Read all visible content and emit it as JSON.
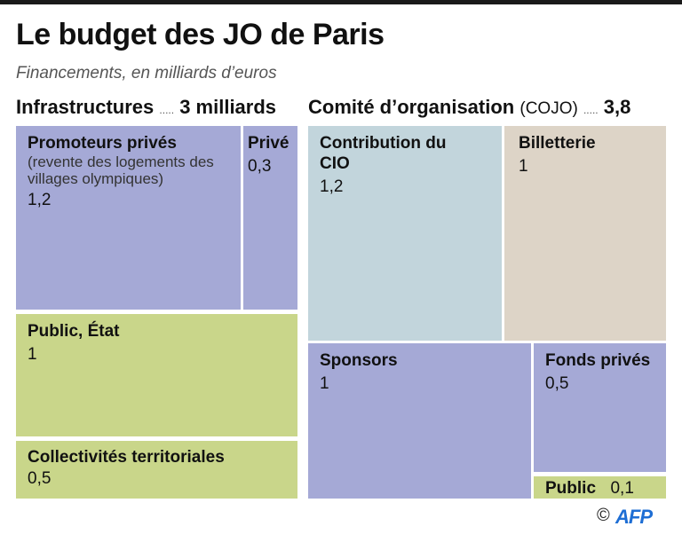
{
  "title": "Le budget des JO de Paris",
  "subtitle": "Financements, en milliards d’euros",
  "credit": {
    "symbol": "©",
    "logo_text": "AFP"
  },
  "colors": {
    "private": "#a5a9d6",
    "public": "#c9d68a",
    "cio": "#c2d5dc",
    "ticketing": "#ddd4c7"
  },
  "chart_data": {
    "type": "treemap",
    "title": "Le budget des JO de Paris",
    "unit": "milliards d’euros",
    "groups": [
      {
        "name": "Infrastructures",
        "dots": ".....",
        "total_label": "3 milliards",
        "total": 3,
        "items": [
          {
            "label": "Promoteurs privés",
            "note": "(revente des logements des villages olympiques)",
            "value_label": "1,2",
            "value": 1.2,
            "category": "private"
          },
          {
            "label": "Privé",
            "value_label": "0,3",
            "value": 0.3,
            "category": "private"
          },
          {
            "label": "Public, État",
            "value_label": "1",
            "value": 1,
            "category": "public"
          },
          {
            "label": "Collectivités territoriales",
            "value_label": "0,5",
            "value": 0.5,
            "category": "public"
          }
        ]
      },
      {
        "name": "Comité d’organisation",
        "qualifier": "(COJO)",
        "dots": ".....",
        "total_label": "3,8",
        "total": 3.8,
        "items": [
          {
            "label": "Contribution du CIO",
            "value_label": "1,2",
            "value": 1.2,
            "category": "cio"
          },
          {
            "label": "Billetterie",
            "value_label": "1",
            "value": 1,
            "category": "ticketing"
          },
          {
            "label": "Sponsors",
            "value_label": "1",
            "value": 1,
            "category": "private"
          },
          {
            "label": "Fonds privés",
            "value_label": "0,5",
            "value": 0.5,
            "category": "private"
          },
          {
            "label": "Public",
            "value_label": "0,1",
            "value": 0.1,
            "category": "public"
          }
        ]
      }
    ]
  }
}
